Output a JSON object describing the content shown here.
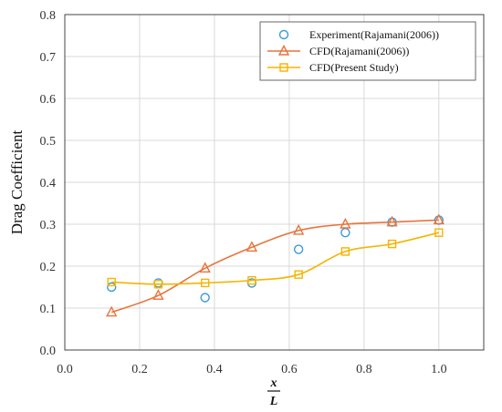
{
  "chart_data": {
    "type": "line",
    "ylabel": "Drag Coefficient",
    "xlabel_numerator": "x",
    "xlabel_denominator": "L",
    "xlim": [
      0.0,
      1.12
    ],
    "ylim": [
      0.0,
      0.8
    ],
    "x_ticks": [
      "0.0",
      "0.2",
      "0.4",
      "0.6",
      "0.8",
      "1.0"
    ],
    "y_ticks": [
      "0.0",
      "0.1",
      "0.2",
      "0.3",
      "0.4",
      "0.5",
      "0.6",
      "0.7",
      "0.8"
    ],
    "grid": true,
    "legend_position": "top-right",
    "series": [
      {
        "name": "Experiment(Rajamani(2006))",
        "marker": "circle",
        "line": false,
        "color": "#3a9ad9",
        "x": [
          0.125,
          0.25,
          0.375,
          0.5,
          0.625,
          0.75,
          0.875,
          1.0
        ],
        "y": [
          0.15,
          0.16,
          0.125,
          0.16,
          0.24,
          0.28,
          0.305,
          0.31
        ]
      },
      {
        "name": "CFD(Rajamani(2006))",
        "marker": "triangle",
        "line": true,
        "color": "#e8743b",
        "x": [
          0.125,
          0.25,
          0.375,
          0.5,
          0.625,
          0.75,
          0.875,
          1.0
        ],
        "y": [
          0.09,
          0.13,
          0.195,
          0.245,
          0.285,
          0.3,
          0.305,
          0.31
        ]
      },
      {
        "name": "CFD(Present Study)",
        "marker": "square",
        "line": true,
        "color": "#f5b400",
        "x": [
          0.125,
          0.25,
          0.375,
          0.5,
          0.625,
          0.75,
          0.875,
          1.0
        ],
        "y": [
          0.162,
          0.157,
          0.16,
          0.166,
          0.18,
          0.235,
          0.253,
          0.28
        ]
      }
    ]
  }
}
